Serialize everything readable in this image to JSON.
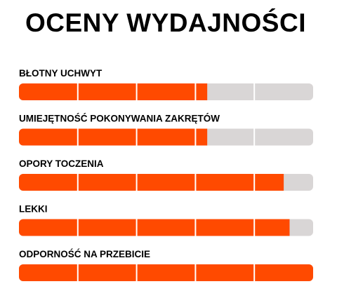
{
  "chart_data": {
    "type": "bar",
    "orientation": "horizontal",
    "title": "OCENY WYDAJNOŚCI",
    "categories": [
      "BŁOTNY UCHWYT",
      "UMIEJĘTNOŚĆ POKONYWANIA ZAKRĘTÓW",
      "OPORY TOCZENIA",
      "LEKKI",
      "ODPORNOŚĆ NA PRZEBICIE"
    ],
    "values": [
      3.2,
      3.2,
      4.5,
      4.6,
      5
    ],
    "color": "#ff4a00",
    "track_color": "#d9d6d6",
    "xlim": [
      0,
      5
    ],
    "xticks": [
      1,
      2,
      3,
      4
    ]
  }
}
